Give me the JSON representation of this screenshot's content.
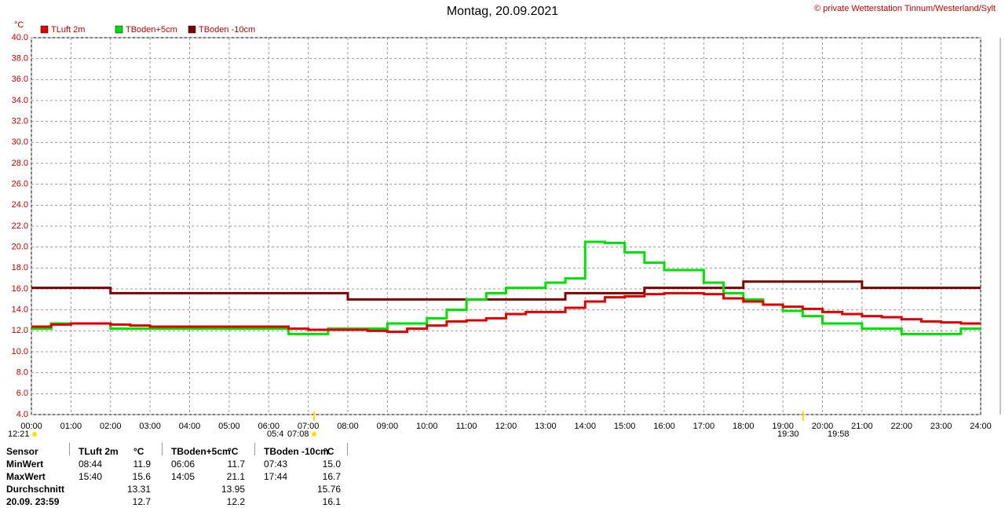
{
  "chart_data": {
    "type": "line",
    "step": true,
    "title": "Montag, 20.09.2021",
    "credit": "© private Wetterstation Tinnum/Westerland/Sylt",
    "y_unit": "°C",
    "grid": true,
    "legend": "top-left",
    "x": [
      0,
      0.5,
      1,
      1.5,
      2,
      2.5,
      3,
      3.5,
      4,
      4.5,
      5,
      5.5,
      6,
      6.5,
      7,
      7.5,
      8,
      8.5,
      9,
      9.5,
      10,
      10.5,
      11,
      11.5,
      12,
      12.5,
      13,
      13.5,
      14,
      14.5,
      15,
      15.5,
      16,
      16.5,
      17,
      17.5,
      18,
      18.5,
      19,
      19.5,
      20,
      20.5,
      21,
      21.5,
      22,
      22.5,
      23,
      23.5,
      24
    ],
    "xlim": [
      0,
      24
    ],
    "xticks": [
      {
        "value": 0,
        "label": "00:00"
      },
      {
        "value": 1,
        "label": "01:00"
      },
      {
        "value": 2,
        "label": "02:00"
      },
      {
        "value": 3,
        "label": "03:00"
      },
      {
        "value": 4,
        "label": "04:00"
      },
      {
        "value": 5,
        "label": "05:00"
      },
      {
        "value": 6,
        "label": "06:00"
      },
      {
        "value": 7,
        "label": "07:00"
      },
      {
        "value": 8,
        "label": "08:00"
      },
      {
        "value": 9,
        "label": "09:00"
      },
      {
        "value": 10,
        "label": "10:00"
      },
      {
        "value": 11,
        "label": "11:00"
      },
      {
        "value": 12,
        "label": "12:00"
      },
      {
        "value": 13,
        "label": "13:00"
      },
      {
        "value": 14,
        "label": "14:00"
      },
      {
        "value": 15,
        "label": "15:00"
      },
      {
        "value": 16,
        "label": "16:00"
      },
      {
        "value": 17,
        "label": "17:00"
      },
      {
        "value": 18,
        "label": "18:00"
      },
      {
        "value": 19,
        "label": "19:00"
      },
      {
        "value": 20,
        "label": "20:00"
      },
      {
        "value": 21,
        "label": "21:00"
      },
      {
        "value": 22,
        "label": "22:00"
      },
      {
        "value": 23,
        "label": "23:00"
      },
      {
        "value": 24,
        "label": "24:00"
      }
    ],
    "ylim": [
      4,
      40
    ],
    "yticks": [
      {
        "value": 4,
        "label": "4.0"
      },
      {
        "value": 6,
        "label": "6.0"
      },
      {
        "value": 8,
        "label": "8.0"
      },
      {
        "value": 10,
        "label": "10.0"
      },
      {
        "value": 12,
        "label": "12.0"
      },
      {
        "value": 14,
        "label": "14.0"
      },
      {
        "value": 16,
        "label": "16.0"
      },
      {
        "value": 18,
        "label": "18.0"
      },
      {
        "value": 20,
        "label": "20.0"
      },
      {
        "value": 22,
        "label": "22.0"
      },
      {
        "value": 24,
        "label": "24.0"
      },
      {
        "value": 26,
        "label": "26.0"
      },
      {
        "value": 28,
        "label": "28.0"
      },
      {
        "value": 30,
        "label": "30.0"
      },
      {
        "value": 32,
        "label": "32.0"
      },
      {
        "value": 34,
        "label": "34.0"
      },
      {
        "value": 36,
        "label": "36.0"
      },
      {
        "value": 38,
        "label": "38.0"
      },
      {
        "value": 40,
        "label": "40.0"
      }
    ],
    "series": [
      {
        "name": "TLuft 2m",
        "color": "#e00000",
        "values": [
          12.4,
          12.6,
          12.7,
          12.7,
          12.6,
          12.5,
          12.4,
          12.4,
          12.4,
          12.4,
          12.4,
          12.4,
          12.4,
          12.2,
          12.1,
          12.1,
          12.1,
          12.0,
          11.9,
          12.2,
          12.5,
          12.9,
          13.0,
          13.2,
          13.6,
          13.8,
          13.8,
          14.2,
          14.8,
          15.2,
          15.3,
          15.5,
          15.6,
          15.6,
          15.5,
          15.1,
          14.8,
          14.5,
          14.3,
          14.1,
          13.8,
          13.6,
          13.4,
          13.3,
          13.1,
          12.9,
          12.8,
          12.7,
          12.7
        ]
      },
      {
        "name": "TBoden+5cm",
        "color": "#00e000",
        "values": [
          12.2,
          12.7,
          12.7,
          12.7,
          12.2,
          12.2,
          12.2,
          12.2,
          12.2,
          12.2,
          12.2,
          12.2,
          12.2,
          11.7,
          11.7,
          12.2,
          12.2,
          12.2,
          12.7,
          12.7,
          13.2,
          14.0,
          15.0,
          15.6,
          16.1,
          16.1,
          16.6,
          17.0,
          20.5,
          20.4,
          19.5,
          18.5,
          17.8,
          17.8,
          16.6,
          15.6,
          15.0,
          14.5,
          13.9,
          13.4,
          12.7,
          12.7,
          12.2,
          12.2,
          11.7,
          11.7,
          11.7,
          12.2,
          12.2
        ]
      },
      {
        "name": "TBoden -10cm",
        "color": "#800000",
        "values": [
          16.1,
          16.1,
          16.1,
          16.1,
          15.6,
          15.6,
          15.6,
          15.6,
          15.6,
          15.6,
          15.6,
          15.6,
          15.6,
          15.6,
          15.6,
          15.6,
          15.0,
          15.0,
          15.0,
          15.0,
          15.0,
          15.0,
          15.0,
          15.0,
          15.0,
          15.0,
          15.0,
          15.6,
          15.6,
          15.6,
          15.6,
          16.1,
          16.1,
          16.1,
          16.1,
          16.1,
          16.7,
          16.7,
          16.7,
          16.7,
          16.7,
          16.7,
          16.1,
          16.1,
          16.1,
          16.1,
          16.1,
          16.1,
          16.1
        ]
      }
    ],
    "sun_times": [
      "12:21",
      "05:4",
      "07:08",
      "19:30",
      "19:58"
    ]
  },
  "stats": {
    "rows": [
      [
        "Sensor",
        "TLuft 2m",
        "°C",
        "TBoden+5cm",
        "°C",
        "TBoden -10cm",
        "°C"
      ],
      [
        "MinWert",
        "08:44",
        "11.9",
        "06:06",
        "11.7",
        "07:43",
        "15.0"
      ],
      [
        "MaxWert",
        "15:40",
        "15.6",
        "14:05",
        "21.1",
        "17:44",
        "16.7"
      ],
      [
        "Durchschnitt",
        null,
        "13.31",
        null,
        "13.95",
        null,
        "15.76"
      ],
      [
        "20.09. 23:59",
        null,
        "12.7",
        null,
        "12.2",
        null,
        "16.1"
      ]
    ]
  }
}
